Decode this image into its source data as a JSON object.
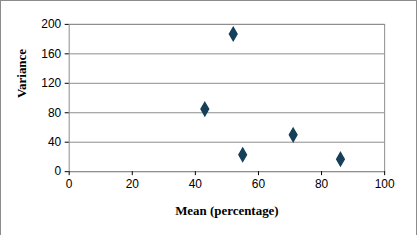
{
  "chart_data": {
    "type": "scatter",
    "x_label": "Mean (percentage)",
    "y_label": "Variance",
    "x": [
      43,
      52,
      55,
      71,
      86
    ],
    "values": [
      85,
      187,
      23,
      50,
      17
    ],
    "color": "#16405a",
    "marker": "diamond",
    "xlim": [
      0,
      100
    ],
    "xticks": [
      0,
      20,
      40,
      60,
      80,
      100
    ],
    "ylim": [
      0,
      200
    ],
    "yticks": [
      0,
      40,
      80,
      120,
      160,
      200
    ],
    "grid": true
  }
}
